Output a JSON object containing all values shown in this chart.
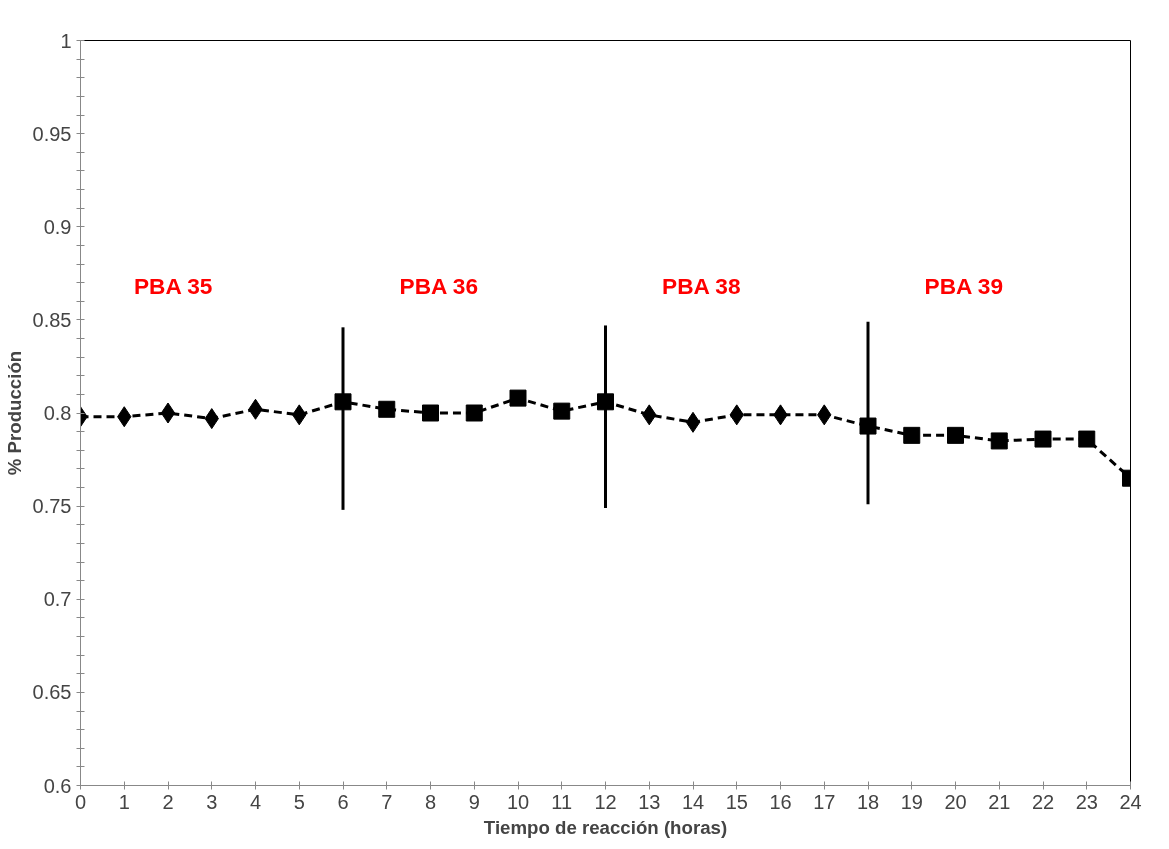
{
  "chart_data": {
    "type": "line",
    "xlabel": "Tiempo de reacción (horas)",
    "ylabel": "% Producción",
    "xlim": [
      0,
      24
    ],
    "xticks": [
      0,
      1,
      2,
      3,
      4,
      5,
      6,
      7,
      8,
      9,
      10,
      11,
      12,
      13,
      14,
      15,
      16,
      17,
      18,
      19,
      20,
      21,
      22,
      23,
      24
    ],
    "ylim": [
      0.6,
      1
    ],
    "yticks": [
      0.6,
      {
        "value": 0.61,
        "label": null
      },
      {
        "value": 0.62,
        "label": null
      },
      {
        "value": 0.63,
        "label": null
      },
      {
        "value": 0.64,
        "label": null
      },
      0.65,
      {
        "value": 0.66,
        "label": null
      },
      {
        "value": 0.67,
        "label": null
      },
      {
        "value": 0.68,
        "label": null
      },
      {
        "value": 0.69,
        "label": null
      },
      0.7,
      {
        "value": 0.71,
        "label": null
      },
      {
        "value": 0.72,
        "label": null
      },
      {
        "value": 0.73,
        "label": null
      },
      {
        "value": 0.74,
        "label": null
      },
      0.75,
      {
        "value": 0.76,
        "label": null
      },
      {
        "value": 0.77,
        "label": null
      },
      {
        "value": 0.78,
        "label": null
      },
      {
        "value": 0.79,
        "label": null
      },
      0.8,
      {
        "value": 0.81,
        "label": null
      },
      {
        "value": 0.82,
        "label": null
      },
      {
        "value": 0.83,
        "label": null
      },
      {
        "value": 0.84,
        "label": null
      },
      0.85,
      {
        "value": 0.86,
        "label": null
      },
      {
        "value": 0.87,
        "label": null
      },
      {
        "value": 0.88,
        "label": null
      },
      {
        "value": 0.89,
        "label": null
      },
      0.9,
      {
        "value": 0.91,
        "label": null
      },
      {
        "value": 0.92,
        "label": null
      },
      {
        "value": 0.93,
        "label": null
      },
      {
        "value": 0.94,
        "label": null
      },
      0.95,
      {
        "value": 0.96,
        "label": null
      },
      {
        "value": 0.97,
        "label": null
      },
      {
        "value": 0.98,
        "label": null
      },
      {
        "value": 0.99,
        "label": null
      },
      1
    ],
    "grid": false,
    "x": [
      0,
      1,
      2,
      3,
      4,
      5,
      6,
      7,
      8,
      9,
      10,
      11,
      12,
      13,
      14,
      15,
      16,
      17,
      18,
      19,
      20,
      21,
      22,
      23,
      24
    ],
    "series": [
      {
        "color": "#000000",
        "line_style": "dashed",
        "marker": "none",
        "values": [
          0.798,
          0.798,
          0.8,
          0.797,
          0.802,
          0.799,
          0.806,
          0.802,
          0.8,
          0.8,
          0.808,
          0.801,
          0.806,
          0.799,
          0.795,
          0.799,
          0.799,
          0.799,
          0.793,
          0.788,
          0.788,
          0.785,
          0.786,
          0.786,
          0.765
        ]
      },
      {
        "type": "scatter",
        "color": "#000000",
        "marker": "diamond",
        "values": [
          0.798,
          0.798,
          0.8,
          0.797,
          0.802,
          0.799,
          null,
          null,
          null,
          null,
          null,
          null,
          null,
          0.799,
          0.795,
          0.799,
          0.799,
          0.799,
          null,
          null,
          null,
          null,
          null,
          null,
          null
        ]
      },
      {
        "type": "scatter",
        "color": "#000000",
        "marker": "square",
        "values": [
          null,
          null,
          null,
          null,
          null,
          null,
          0.806,
          0.802,
          0.8,
          0.8,
          0.808,
          0.801,
          0.806,
          null,
          null,
          null,
          null,
          null,
          0.793,
          0.788,
          0.788,
          0.785,
          0.786,
          0.786,
          0.765
        ]
      },
      {
        "type": "line",
        "color": "#000000",
        "line_style": "solid",
        "marker": "none",
        "x": [
          6,
          6
        ],
        "values": [
          0.748,
          0.846
        ]
      },
      {
        "type": "line",
        "color": "#000000",
        "line_style": "solid",
        "marker": "none",
        "x": [
          12,
          12
        ],
        "values": [
          0.749,
          0.847
        ]
      },
      {
        "type": "line",
        "color": "#000000",
        "line_style": "solid",
        "marker": "none",
        "x": [
          18,
          18
        ],
        "values": [
          0.751,
          0.849
        ]
      }
    ],
    "annotations": [
      "PBA  35",
      "PBA 36",
      "PBA 38",
      "PBA 39"
    ]
  }
}
